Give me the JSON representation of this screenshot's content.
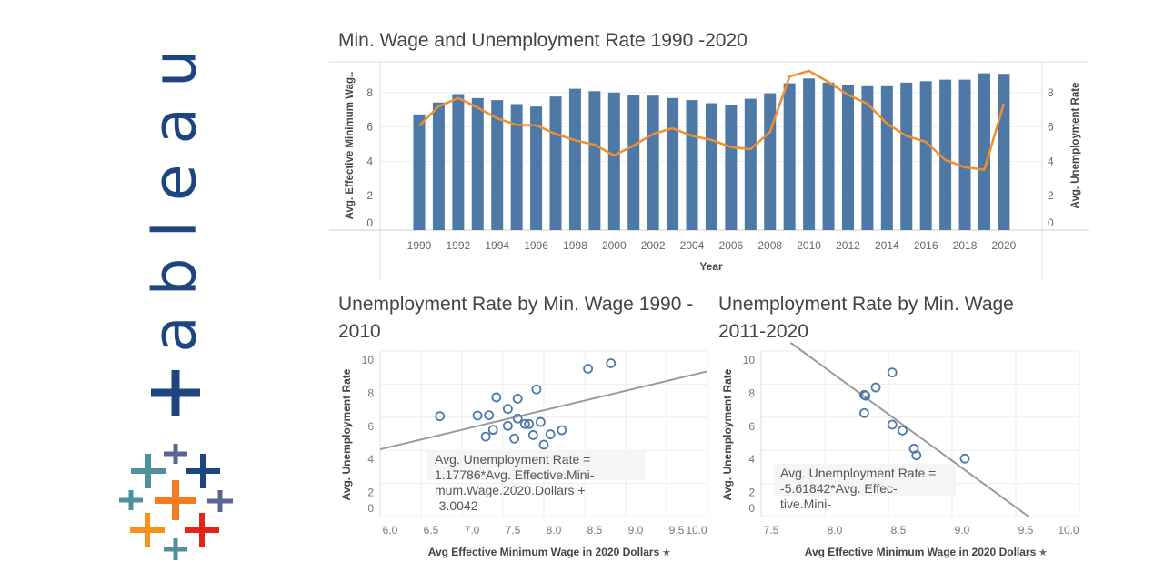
{
  "logo": {
    "text": "+ableau",
    "colors": {
      "wordmark": "#1f457e",
      "orange": "#f47b20",
      "teal": "#4e8fa0",
      "purple": "#5a6593",
      "blue": "#1f457e",
      "red": "#e2231a",
      "yellow_orange": "#f6921e"
    }
  },
  "colors": {
    "bar": "#4e79a7",
    "line": "#f28e2b",
    "points": "#4e79a7",
    "trend": "#999999",
    "grid": "#eeeeee"
  },
  "chart_data": [
    {
      "type": "bar+line",
      "title": "Min. Wage and Unemployment Rate 1990 -2020",
      "xlabel": "Year",
      "ylabel": "Avg. Effective Minimum Wag..",
      "y2label": "Avg. Unemployment Rate",
      "ylim": [
        0,
        9.5
      ],
      "y2lim": [
        0,
        9.5
      ],
      "yticks": [
        "0",
        "2",
        "4",
        "6",
        "8"
      ],
      "xticks": [
        "1990",
        "1992",
        "1994",
        "1996",
        "1998",
        "2000",
        "2002",
        "2004",
        "2006",
        "2008",
        "2010",
        "2012",
        "2014",
        "2016",
        "2018",
        "2020"
      ],
      "x": [
        1990,
        1991,
        1992,
        1993,
        1994,
        1995,
        1996,
        1997,
        1998,
        1999,
        2000,
        2001,
        2002,
        2003,
        2004,
        2005,
        2006,
        2007,
        2008,
        2009,
        2010,
        2011,
        2012,
        2013,
        2014,
        2015,
        2016,
        2017,
        2018,
        2019,
        2020
      ],
      "series": [
        {
          "kind": "bar",
          "values": [
            6.73,
            7.42,
            7.91,
            7.68,
            7.56,
            7.33,
            7.19,
            7.77,
            8.22,
            8.08,
            8.0,
            7.87,
            7.82,
            7.68,
            7.56,
            7.38,
            7.29,
            7.64,
            7.96,
            8.54,
            8.82,
            8.58,
            8.45,
            8.37,
            8.37,
            8.58,
            8.66,
            8.75,
            8.75,
            9.12,
            9.09
          ]
        },
        {
          "kind": "line",
          "values": [
            6.06,
            7.2,
            7.68,
            7.12,
            6.5,
            6.12,
            6.1,
            5.59,
            5.22,
            4.97,
            4.34,
            4.92,
            5.59,
            5.92,
            5.48,
            5.24,
            4.83,
            4.71,
            5.71,
            8.93,
            9.26,
            8.61,
            7.87,
            7.35,
            6.19,
            5.48,
            5.13,
            4.08,
            3.66,
            3.51,
            7.35
          ]
        }
      ],
      "grid": true
    },
    {
      "type": "scatter",
      "title": "Unemployment Rate by Min. Wage 1990 - 2010",
      "xlabel": "Avg Effective Minimum Wage in 2020 Dollars",
      "ylabel": "Avg. Unemployment Rate",
      "xlim": [
        6.0,
        10.0
      ],
      "ylim": [
        0,
        10
      ],
      "xticks": [
        "6.0",
        "6.5",
        "7.0",
        "7.5",
        "8.0",
        "8.5",
        "9.0",
        "9.5",
        "10.0"
      ],
      "yticks": [
        "0",
        "2",
        "4",
        "6",
        "8",
        "10"
      ],
      "x": [
        6.73,
        7.42,
        7.91,
        7.68,
        7.56,
        7.33,
        7.19,
        7.77,
        8.22,
        8.08,
        8.0,
        7.87,
        7.82,
        7.68,
        7.56,
        7.38,
        7.29,
        7.64,
        7.96,
        8.54,
        8.82
      ],
      "y": [
        6.06,
        7.2,
        7.68,
        7.12,
        6.5,
        6.12,
        6.1,
        5.59,
        5.22,
        4.97,
        4.34,
        4.92,
        5.59,
        5.92,
        5.48,
        5.24,
        4.83,
        4.71,
        5.71,
        8.93,
        9.26
      ],
      "trend": {
        "slope": 1.17786,
        "intercept": -3.0042
      },
      "equation_lines": [
        "Avg. Unemployment Rate =",
        "1.17786*Avg. Effective.Mini-",
        "mum.Wage.2020.Dollars +",
        "-3.0042"
      ],
      "grid": true
    },
    {
      "type": "scatter",
      "title": "Unemployment Rate by Min. Wage 2011-2020",
      "xlabel": "Avg Effective Minimum Wage in 2020 Dollars",
      "ylabel": "Avg. Unemployment Rate",
      "xlim": [
        7.5,
        10.0
      ],
      "ylim": [
        0,
        10
      ],
      "xticks": [
        "7.5",
        "8.0",
        "8.5",
        "9.0",
        "9.5",
        "10.0"
      ],
      "yticks": [
        "0",
        "2",
        "4",
        "6",
        "8",
        "10"
      ],
      "x": [
        8.53,
        8.31,
        8.4,
        8.31,
        8.53,
        8.61,
        8.7,
        8.72,
        9.1,
        8.32
      ],
      "y": [
        8.7,
        7.35,
        7.8,
        6.25,
        5.55,
        5.2,
        4.1,
        3.7,
        3.5,
        7.3
      ],
      "trend": {
        "slope": -5.61842,
        "intercept": 53.94
      },
      "equation_lines": [
        "Avg. Unemployment Rate =",
        "-5.61842*Avg. Effec-",
        "tive.Mini-"
      ],
      "grid": true
    }
  ]
}
